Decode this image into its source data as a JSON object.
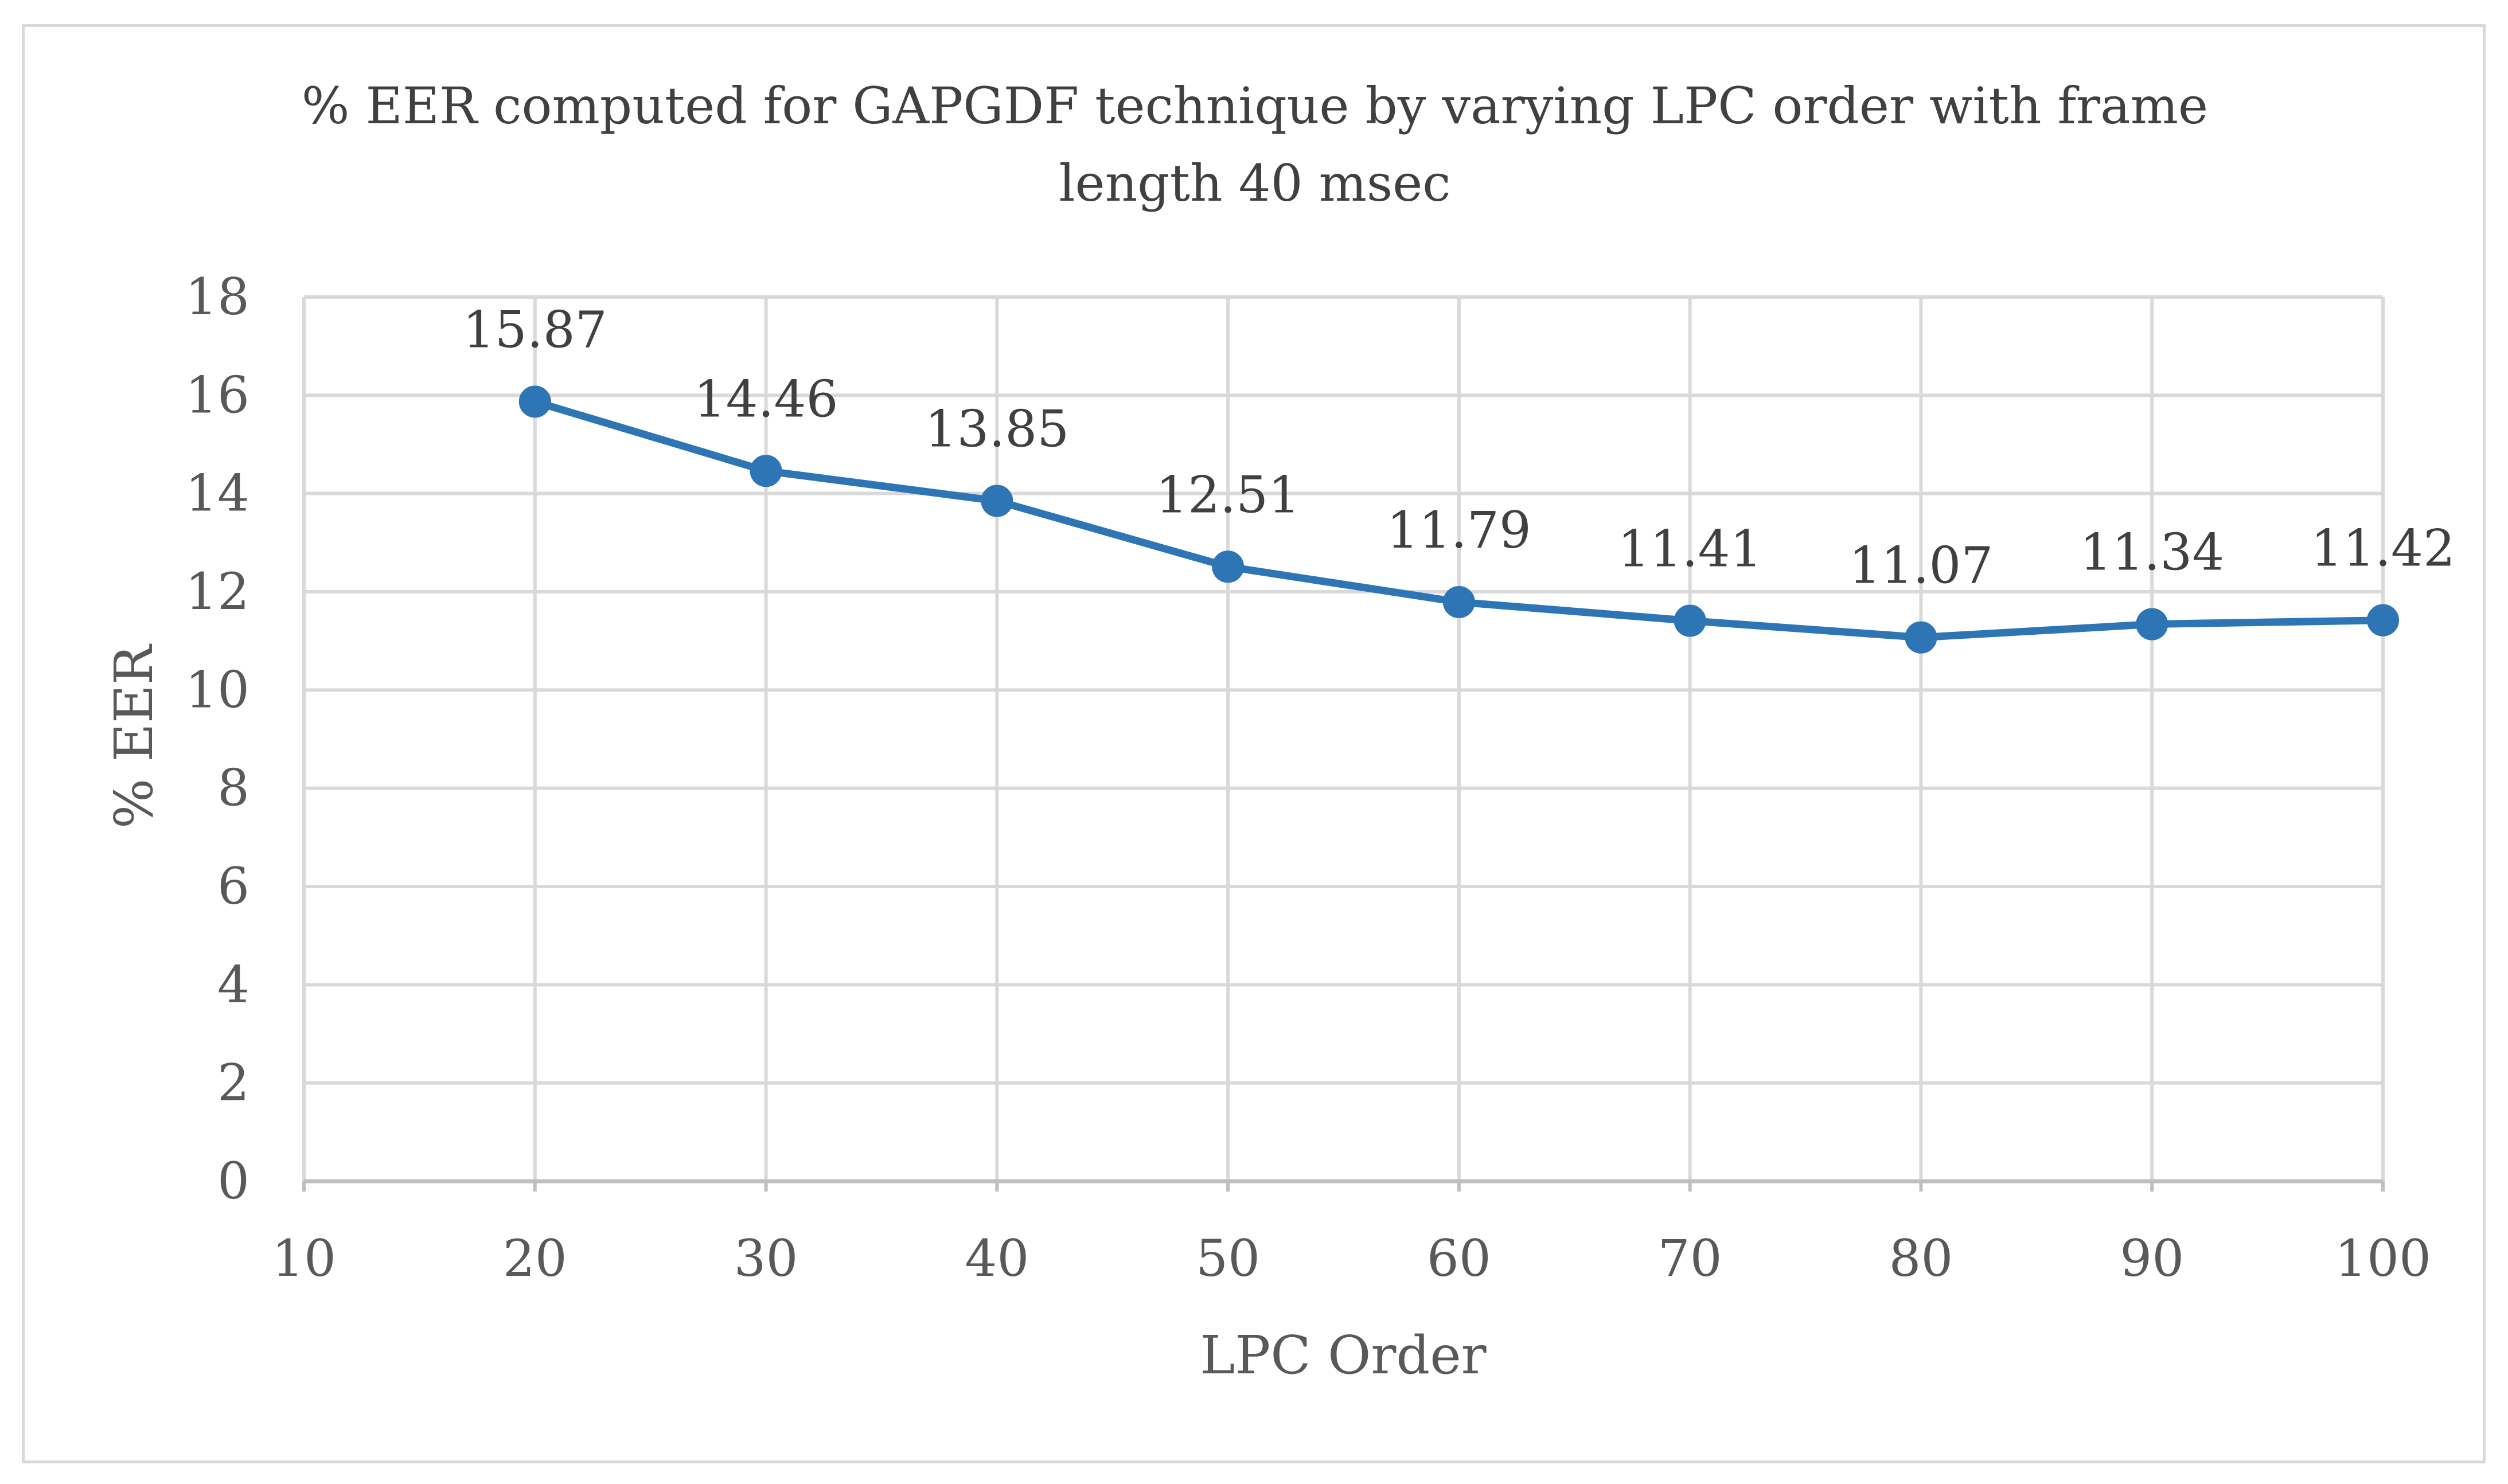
{
  "chart_data": {
    "type": "line",
    "title_line1": "% EER computed for GAPGDF technique by varying LPC order with frame",
    "title_line2": "length 40 msec",
    "xlabel": "LPC Order",
    "ylabel": "% EER",
    "xlim": [
      10,
      100
    ],
    "ylim": [
      0,
      18
    ],
    "x_ticks": [
      10,
      20,
      30,
      40,
      50,
      60,
      70,
      80,
      90,
      100
    ],
    "y_ticks": [
      0,
      2,
      4,
      6,
      8,
      10,
      12,
      14,
      16,
      18
    ],
    "grid": true,
    "series": [
      {
        "name": "% EER",
        "color": "#2e75b6",
        "x": [
          20,
          30,
          40,
          50,
          60,
          70,
          80,
          90,
          100
        ],
        "values": [
          15.87,
          14.46,
          13.85,
          12.51,
          11.79,
          11.41,
          11.07,
          11.34,
          11.42
        ],
        "labels": [
          "15.87",
          "14.46",
          "13.85",
          "12.51",
          "11.79",
          "11.41",
          "11.07",
          "11.34",
          "11.42"
        ]
      }
    ]
  }
}
